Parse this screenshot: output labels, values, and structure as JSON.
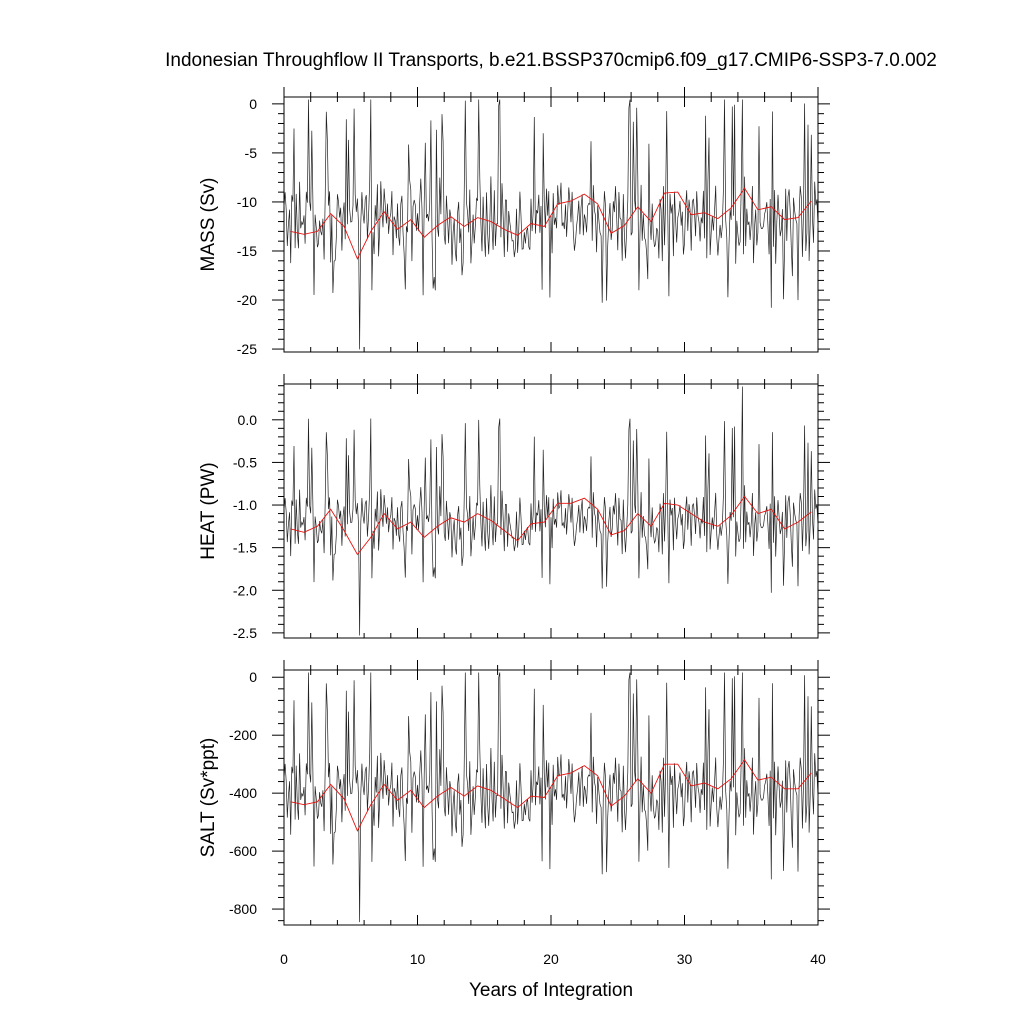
{
  "chart_data": {
    "type": "line",
    "title": "Indonesian Throughflow II Transports, b.e21.BSSP370cmip6.f09_g17.CMIP6-SSP3-7.0.002",
    "xlabel": "Years of Integration",
    "xlim": [
      0,
      40
    ],
    "x_ticks": [
      "0",
      "10",
      "20",
      "30",
      "40"
    ],
    "colors": {
      "monthly": "#222222",
      "annual": "#e8130f"
    },
    "panels": [
      {
        "ylabel": "MASS (Sv)",
        "ylim": [
          -25.3,
          0.7
        ],
        "y_ticks": [
          "0",
          "-5",
          "-10",
          "-15",
          "-20",
          "-25"
        ],
        "y_tick_values": [
          0,
          -5,
          -10,
          -15,
          -20,
          -25
        ],
        "annual_x": [
          0.5,
          1.5,
          2.5,
          3.5,
          4.5,
          5.5,
          6.5,
          7.5,
          8.5,
          9.5,
          10.5,
          11.5,
          12.5,
          13.5,
          14.5,
          15.5,
          16.5,
          17.5,
          18.5,
          19.5,
          20.5,
          21.5,
          22.5,
          23.5,
          24.5,
          25.5,
          26.5,
          27.5,
          28.5,
          29.5,
          30.5,
          31.5,
          32.5,
          33.5,
          34.5,
          35.5,
          36.5,
          37.5,
          38.5,
          39.5
        ],
        "annual_values": [
          -13.0,
          -13.3,
          -13.0,
          -11.2,
          -12.5,
          -15.8,
          -13.0,
          -11.0,
          -12.8,
          -11.8,
          -13.6,
          -12.4,
          -11.5,
          -12.5,
          -11.6,
          -12.0,
          -12.8,
          -13.4,
          -12.2,
          -12.5,
          -10.2,
          -9.9,
          -9.2,
          -10.2,
          -13.2,
          -12.4,
          -10.5,
          -12.0,
          -9.1,
          -9.0,
          -11.3,
          -11.1,
          -11.7,
          -10.6,
          -8.6,
          -10.8,
          -10.5,
          -11.8,
          -11.6,
          -9.9
        ],
        "monthly_mean": -12.0,
        "monthly_amp": 3.4,
        "monthly_peak": 0.8,
        "monthly_min": -25.1,
        "monthly_max": 0.6
      },
      {
        "ylabel": "HEAT (PW)",
        "ylim": [
          -2.56,
          0.42
        ],
        "y_ticks": [
          "0.0",
          "-0.5",
          "-1.0",
          "-1.5",
          "-2.0",
          "-2.5"
        ],
        "y_tick_values": [
          0,
          -0.5,
          -1.0,
          -1.5,
          -2.0,
          -2.5
        ],
        "annual_x": [
          0.5,
          1.5,
          2.5,
          3.5,
          4.5,
          5.5,
          6.5,
          7.5,
          8.5,
          9.5,
          10.5,
          11.5,
          12.5,
          13.5,
          14.5,
          15.5,
          16.5,
          17.5,
          18.5,
          19.5,
          20.5,
          21.5,
          22.5,
          23.5,
          24.5,
          25.5,
          26.5,
          27.5,
          28.5,
          29.5,
          30.5,
          31.5,
          32.5,
          33.5,
          34.5,
          35.5,
          36.5,
          37.5,
          38.5,
          39.5
        ],
        "annual_values": [
          -1.28,
          -1.32,
          -1.25,
          -1.05,
          -1.3,
          -1.58,
          -1.38,
          -1.1,
          -1.28,
          -1.2,
          -1.38,
          -1.25,
          -1.15,
          -1.2,
          -1.1,
          -1.18,
          -1.3,
          -1.42,
          -1.22,
          -1.2,
          -0.98,
          -0.98,
          -0.92,
          -1.05,
          -1.35,
          -1.3,
          -1.1,
          -1.25,
          -0.98,
          -1.0,
          -1.1,
          -1.2,
          -1.25,
          -1.12,
          -0.9,
          -1.1,
          -1.05,
          -1.28,
          -1.2,
          -1.08
        ],
        "monthly_mean": -1.2,
        "monthly_amp": 0.32,
        "monthly_peak": 0.075,
        "monthly_min": -2.55,
        "monthly_max": 0.4
      },
      {
        "ylabel": "SALT (Sv*ppt)",
        "ylim": [
          -855,
          25
        ],
        "y_ticks": [
          "0",
          "-200",
          "-400",
          "-600",
          "-800"
        ],
        "y_tick_values": [
          0,
          -200,
          -400,
          -600,
          -800
        ],
        "annual_x": [
          0.5,
          1.5,
          2.5,
          3.5,
          4.5,
          5.5,
          6.5,
          7.5,
          8.5,
          9.5,
          10.5,
          11.5,
          12.5,
          13.5,
          14.5,
          15.5,
          16.5,
          17.5,
          18.5,
          19.5,
          20.5,
          21.5,
          22.5,
          23.5,
          24.5,
          25.5,
          26.5,
          27.5,
          28.5,
          29.5,
          30.5,
          31.5,
          32.5,
          33.5,
          34.5,
          35.5,
          36.5,
          37.5,
          38.5,
          39.5
        ],
        "annual_values": [
          -430,
          -440,
          -430,
          -370,
          -420,
          -530,
          -440,
          -370,
          -425,
          -390,
          -450,
          -410,
          -380,
          -410,
          -375,
          -390,
          -420,
          -450,
          -410,
          -415,
          -340,
          -330,
          -305,
          -340,
          -445,
          -410,
          -350,
          -400,
          -300,
          -300,
          -375,
          -365,
          -385,
          -350,
          -285,
          -355,
          -345,
          -385,
          -385,
          -330
        ],
        "monthly_mean": -400,
        "monthly_amp": 115,
        "monthly_peak": 28,
        "monthly_min": -845,
        "monthly_max": 18
      }
    ]
  }
}
